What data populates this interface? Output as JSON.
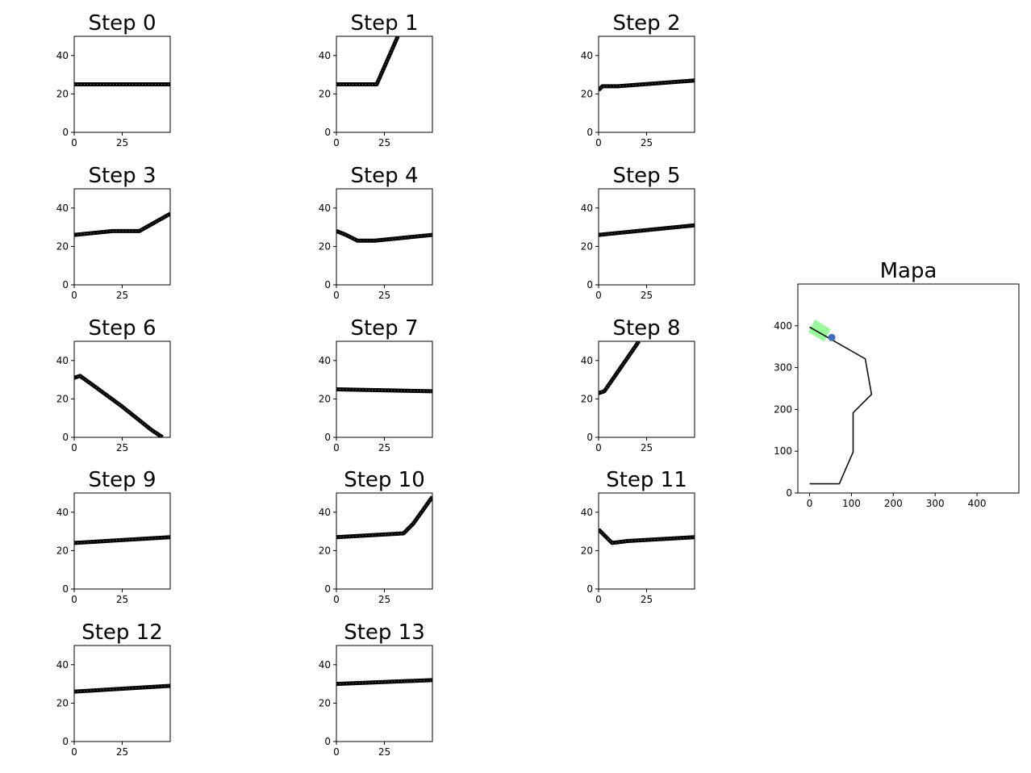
{
  "chart_data": [
    {
      "type": "line",
      "title": "Step 0",
      "xticks": [
        "0",
        "25"
      ],
      "yticks": [
        "0",
        "20",
        "40"
      ],
      "xlim": [
        0,
        50
      ],
      "ylim": [
        50,
        0
      ],
      "series": [
        {
          "values": [
            [
              0,
              25
            ],
            [
              50,
              25
            ]
          ]
        }
      ]
    },
    {
      "type": "line",
      "title": "Step 1",
      "xticks": [
        "0",
        "25"
      ],
      "yticks": [
        "0",
        "20",
        "40"
      ],
      "xlim": [
        0,
        50
      ],
      "ylim": [
        50,
        0
      ],
      "series": [
        {
          "values": [
            [
              0,
              25
            ],
            [
              21,
              25
            ],
            [
              32,
              50
            ]
          ]
        }
      ]
    },
    {
      "type": "line",
      "title": "Step 2",
      "xticks": [
        "0",
        "25"
      ],
      "yticks": [
        "0",
        "20",
        "40"
      ],
      "xlim": [
        0,
        50
      ],
      "ylim": [
        50,
        0
      ],
      "series": [
        {
          "values": [
            [
              0,
              22
            ],
            [
              2,
              24
            ],
            [
              10,
              24
            ],
            [
              50,
              27
            ]
          ]
        }
      ]
    },
    {
      "type": "line",
      "title": "Step 3",
      "xticks": [
        "0",
        "25"
      ],
      "yticks": [
        "0",
        "20",
        "40"
      ],
      "xlim": [
        0,
        50
      ],
      "ylim": [
        50,
        0
      ],
      "series": [
        {
          "values": [
            [
              0,
              26
            ],
            [
              20,
              28
            ],
            [
              34,
              28
            ],
            [
              50,
              37
            ]
          ]
        }
      ]
    },
    {
      "type": "line",
      "title": "Step 4",
      "xticks": [
        "0",
        "25"
      ],
      "yticks": [
        "0",
        "20",
        "40"
      ],
      "xlim": [
        0,
        50
      ],
      "ylim": [
        50,
        0
      ],
      "series": [
        {
          "values": [
            [
              0,
              28
            ],
            [
              5,
              26
            ],
            [
              11,
              23
            ],
            [
              20,
              23
            ],
            [
              50,
              26
            ]
          ]
        }
      ]
    },
    {
      "type": "line",
      "title": "Step 5",
      "xticks": [
        "0",
        "25"
      ],
      "yticks": [
        "0",
        "20",
        "40"
      ],
      "xlim": [
        0,
        50
      ],
      "ylim": [
        50,
        0
      ],
      "series": [
        {
          "values": [
            [
              0,
              26
            ],
            [
              50,
              31
            ]
          ]
        }
      ]
    },
    {
      "type": "line",
      "title": "Step 6",
      "xticks": [
        "0",
        "25"
      ],
      "yticks": [
        "0",
        "20",
        "40"
      ],
      "xlim": [
        0,
        50
      ],
      "ylim": [
        50,
        0
      ],
      "series": [
        {
          "values": [
            [
              0,
              31
            ],
            [
              3,
              32
            ],
            [
              10,
              27
            ],
            [
              25,
              16
            ],
            [
              40,
              4
            ],
            [
              46,
              0
            ]
          ]
        }
      ]
    },
    {
      "type": "line",
      "title": "Step 7",
      "xticks": [
        "0",
        "25"
      ],
      "yticks": [
        "0",
        "20",
        "40"
      ],
      "xlim": [
        0,
        50
      ],
      "ylim": [
        50,
        0
      ],
      "series": [
        {
          "values": [
            [
              0,
              25
            ],
            [
              50,
              24
            ]
          ]
        }
      ]
    },
    {
      "type": "line",
      "title": "Step 8",
      "xticks": [
        "0",
        "25"
      ],
      "yticks": [
        "0",
        "20",
        "40"
      ],
      "xlim": [
        0,
        50
      ],
      "ylim": [
        50,
        0
      ],
      "series": [
        {
          "values": [
            [
              0,
              23
            ],
            [
              3,
              24
            ],
            [
              21,
              50
            ]
          ]
        }
      ]
    },
    {
      "type": "line",
      "title": "Step 9",
      "xticks": [
        "0",
        "25"
      ],
      "yticks": [
        "0",
        "20",
        "40"
      ],
      "xlim": [
        0,
        50
      ],
      "ylim": [
        50,
        0
      ],
      "series": [
        {
          "values": [
            [
              0,
              24
            ],
            [
              50,
              27
            ]
          ]
        }
      ]
    },
    {
      "type": "line",
      "title": "Step 10",
      "xticks": [
        "0",
        "25"
      ],
      "yticks": [
        "0",
        "20",
        "40"
      ],
      "xlim": [
        0,
        50
      ],
      "ylim": [
        50,
        0
      ],
      "series": [
        {
          "values": [
            [
              0,
              27
            ],
            [
              35,
              29
            ],
            [
              40,
              34
            ],
            [
              50,
              48
            ]
          ]
        }
      ]
    },
    {
      "type": "line",
      "title": "Step 11",
      "xticks": [
        "0",
        "25"
      ],
      "yticks": [
        "0",
        "20",
        "40"
      ],
      "xlim": [
        0,
        50
      ],
      "ylim": [
        50,
        0
      ],
      "series": [
        {
          "values": [
            [
              0,
              31
            ],
            [
              3,
              28
            ],
            [
              7,
              24
            ],
            [
              15,
              25
            ],
            [
              50,
              27
            ]
          ]
        }
      ]
    },
    {
      "type": "line",
      "title": "Step 12",
      "xticks": [
        "0",
        "25"
      ],
      "yticks": [
        "0",
        "20",
        "40"
      ],
      "xlim": [
        0,
        50
      ],
      "ylim": [
        50,
        0
      ],
      "series": [
        {
          "values": [
            [
              0,
              26
            ],
            [
              50,
              29
            ]
          ]
        }
      ]
    },
    {
      "type": "line",
      "title": "Step 13",
      "xticks": [
        "0",
        "25"
      ],
      "yticks": [
        "0",
        "20",
        "40"
      ],
      "xlim": [
        0,
        50
      ],
      "ylim": [
        50,
        0
      ],
      "series": [
        {
          "values": [
            [
              0,
              30
            ],
            [
              50,
              32
            ]
          ]
        }
      ]
    },
    {
      "type": "line",
      "title": "Mapa",
      "xticks": [
        "0",
        "100",
        "200",
        "300",
        "400"
      ],
      "yticks": [
        "0",
        "100",
        "200",
        "300",
        "400"
      ],
      "xlim": [
        -28,
        500
      ],
      "ylim": [
        500,
        0
      ],
      "series": [
        {
          "values": [
            [
              0,
              22
            ],
            [
              71,
              22
            ],
            [
              104,
              98
            ],
            [
              104,
              192
            ],
            [
              148,
              236
            ],
            [
              133,
              321
            ],
            [
              0,
              397
            ]
          ]
        }
      ],
      "robot": {
        "position": [
          53,
          372
        ],
        "color": "#3f6fbf",
        "footprint_color": "#99f99a",
        "footprint": [
          [
            -3,
            385
          ],
          [
            35,
            362
          ],
          [
            50,
            392
          ],
          [
            13,
            415
          ]
        ]
      }
    }
  ]
}
